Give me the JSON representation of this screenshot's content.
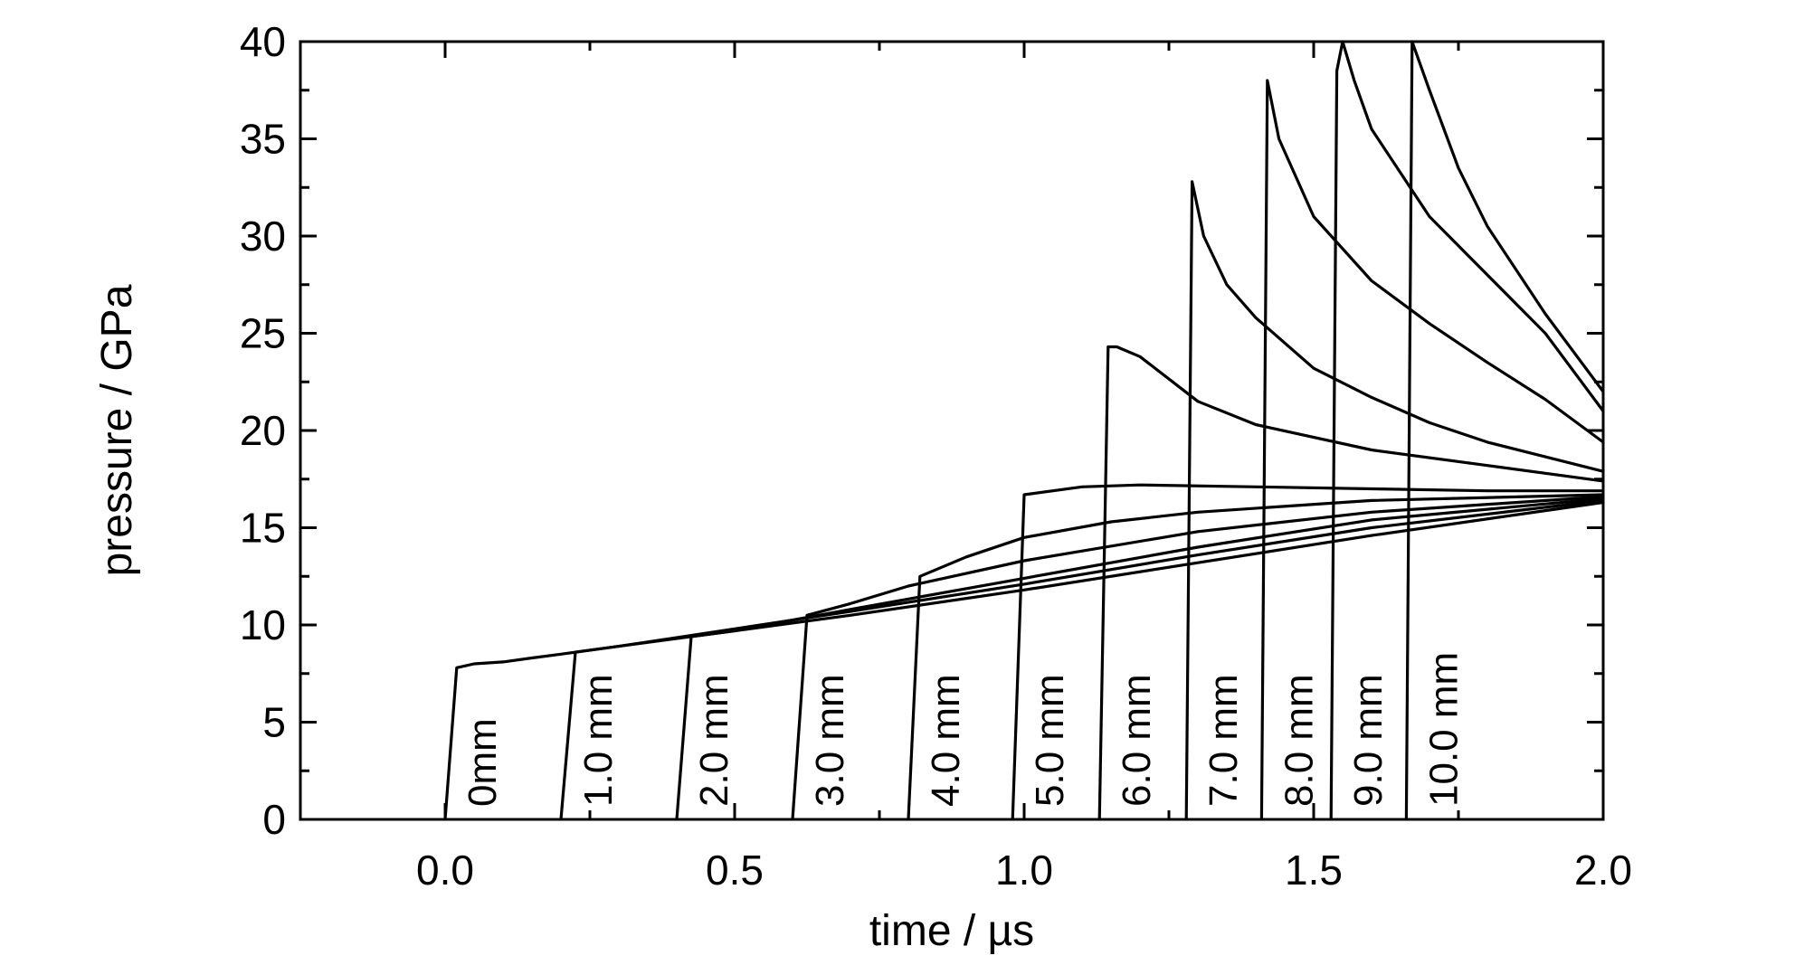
{
  "chart_data": {
    "type": "line",
    "title": "",
    "xlabel": "time / µs",
    "ylabel": "pressure / GPa",
    "xlim": [
      -0.25,
      2.0
    ],
    "ylim": [
      0,
      40
    ],
    "x_ticks": [
      "0.0",
      "0.5",
      "1.0",
      "1.5",
      "2.0"
    ],
    "y_ticks": [
      "0",
      "5",
      "10",
      "15",
      "20",
      "25",
      "30",
      "35",
      "40"
    ],
    "grid": false,
    "legend": "none",
    "line_color": "#000000",
    "series": [
      {
        "name": "0mm",
        "arrival": 0.0,
        "points": [
          [
            0.0,
            0
          ],
          [
            0.02,
            7.8
          ],
          [
            0.05,
            8.0
          ],
          [
            0.1,
            8.1
          ],
          [
            0.15,
            8.3
          ],
          [
            0.2,
            8.5
          ],
          [
            0.3,
            8.9
          ],
          [
            0.5,
            9.7
          ],
          [
            0.7,
            10.5
          ],
          [
            1.0,
            11.8
          ],
          [
            1.3,
            13.2
          ],
          [
            1.6,
            14.6
          ],
          [
            2.0,
            16.3
          ]
        ]
      },
      {
        "name": "1.0 mm",
        "arrival": 0.2,
        "points": [
          [
            0.2,
            0
          ],
          [
            0.225,
            8.6
          ],
          [
            0.3,
            8.9
          ],
          [
            0.5,
            9.8
          ],
          [
            0.7,
            10.7
          ],
          [
            1.0,
            12.1
          ],
          [
            1.3,
            13.6
          ],
          [
            1.6,
            15.0
          ],
          [
            2.0,
            16.4
          ]
        ]
      },
      {
        "name": "2.0 mm",
        "arrival": 0.4,
        "points": [
          [
            0.4,
            0
          ],
          [
            0.425,
            9.4
          ],
          [
            0.5,
            9.7
          ],
          [
            0.7,
            10.8
          ],
          [
            1.0,
            12.4
          ],
          [
            1.3,
            14.0
          ],
          [
            1.6,
            15.4
          ],
          [
            2.0,
            16.5
          ]
        ]
      },
      {
        "name": "3.0 mm",
        "arrival": 0.6,
        "points": [
          [
            0.6,
            0
          ],
          [
            0.625,
            10.5
          ],
          [
            0.7,
            11.1
          ],
          [
            0.8,
            12.0
          ],
          [
            1.0,
            13.3
          ],
          [
            1.3,
            14.8
          ],
          [
            1.6,
            15.8
          ],
          [
            2.0,
            16.6
          ]
        ]
      },
      {
        "name": "4.0 mm",
        "arrival": 0.8,
        "points": [
          [
            0.8,
            0
          ],
          [
            0.82,
            12.5
          ],
          [
            0.9,
            13.5
          ],
          [
            1.0,
            14.5
          ],
          [
            1.15,
            15.3
          ],
          [
            1.3,
            15.8
          ],
          [
            1.6,
            16.4
          ],
          [
            2.0,
            16.7
          ]
        ]
      },
      {
        "name": "5.0 mm",
        "arrival": 0.98,
        "points": [
          [
            0.98,
            0
          ],
          [
            1.0,
            16.7
          ],
          [
            1.1,
            17.1
          ],
          [
            1.2,
            17.2
          ],
          [
            1.4,
            17.1
          ],
          [
            1.6,
            17.0
          ],
          [
            1.8,
            16.9
          ],
          [
            2.0,
            16.9
          ]
        ]
      },
      {
        "name": "6.0 mm",
        "arrival": 1.13,
        "points": [
          [
            1.13,
            0
          ],
          [
            1.145,
            24.3
          ],
          [
            1.16,
            24.3
          ],
          [
            1.2,
            23.8
          ],
          [
            1.3,
            21.5
          ],
          [
            1.4,
            20.3
          ],
          [
            1.6,
            19.0
          ],
          [
            1.8,
            18.2
          ],
          [
            2.0,
            17.4
          ]
        ]
      },
      {
        "name": "7.0 mm",
        "arrival": 1.28,
        "points": [
          [
            1.28,
            0
          ],
          [
            1.29,
            32.8
          ],
          [
            1.31,
            30.0
          ],
          [
            1.35,
            27.5
          ],
          [
            1.4,
            25.8
          ],
          [
            1.5,
            23.2
          ],
          [
            1.6,
            21.7
          ],
          [
            1.7,
            20.4
          ],
          [
            1.8,
            19.4
          ],
          [
            2.0,
            17.9
          ]
        ]
      },
      {
        "name": "8.0 mm",
        "arrival": 1.41,
        "points": [
          [
            1.41,
            0
          ],
          [
            1.42,
            38.0
          ],
          [
            1.44,
            35.0
          ],
          [
            1.5,
            31.0
          ],
          [
            1.6,
            27.7
          ],
          [
            1.7,
            25.5
          ],
          [
            1.8,
            23.5
          ],
          [
            1.9,
            21.6
          ],
          [
            2.0,
            19.4
          ]
        ]
      },
      {
        "name": "9.0 mm",
        "arrival": 1.53,
        "points": [
          [
            1.53,
            0
          ],
          [
            1.54,
            38.5
          ],
          [
            1.55,
            40.0
          ],
          [
            1.57,
            38.0
          ],
          [
            1.6,
            35.5
          ],
          [
            1.7,
            31.0
          ],
          [
            1.8,
            28.0
          ],
          [
            1.9,
            25.0
          ],
          [
            2.0,
            21.0
          ]
        ]
      },
      {
        "name": "10.0 mm",
        "arrival": 1.66,
        "points": [
          [
            1.66,
            0
          ],
          [
            1.67,
            40.0
          ],
          [
            1.7,
            37.5
          ],
          [
            1.75,
            33.5
          ],
          [
            1.8,
            30.5
          ],
          [
            1.9,
            26.0
          ],
          [
            2.0,
            22.0
          ]
        ]
      }
    ]
  }
}
